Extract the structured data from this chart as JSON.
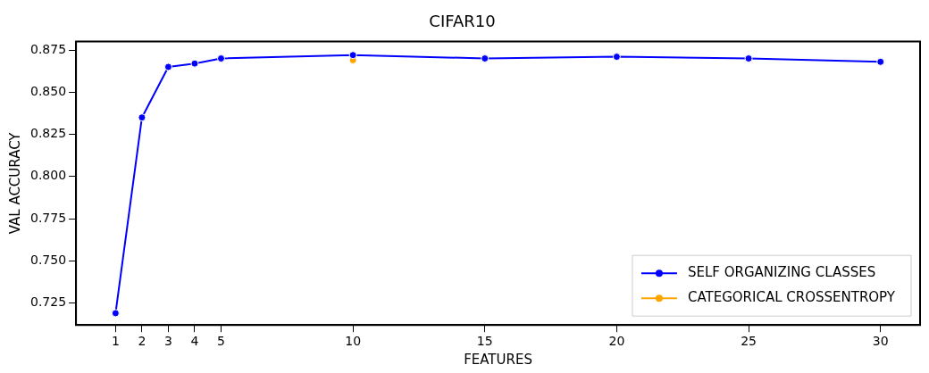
{
  "chart_data": {
    "type": "line",
    "title": "CIFAR10",
    "xlabel": "FEATURES",
    "ylabel": "VAL ACCURACY",
    "x": [
      1,
      2,
      3,
      4,
      5,
      10,
      15,
      20,
      25,
      30
    ],
    "series": [
      {
        "name": "SELF ORGANIZING CLASSES",
        "color": "#0000ff",
        "values": [
          0.719,
          0.835,
          0.865,
          0.867,
          0.87,
          0.872,
          0.87,
          0.871,
          0.87,
          0.868
        ]
      },
      {
        "name": "CATEGORICAL CROSSENTROPY",
        "color": "#ffa500",
        "x": [
          10
        ],
        "values": [
          0.869
        ]
      }
    ],
    "xlim": [
      -0.5,
      31.5
    ],
    "ylim": [
      0.712,
      0.88
    ],
    "xticks": [
      1,
      2,
      3,
      4,
      5,
      10,
      15,
      20,
      25,
      30
    ],
    "yticks": [
      {
        "value": 0.725,
        "label": "0.725"
      },
      {
        "value": 0.75,
        "label": "0.750"
      },
      {
        "value": 0.775,
        "label": "0.775"
      },
      {
        "value": 0.8,
        "label": "0.800"
      },
      {
        "value": 0.825,
        "label": "0.825"
      },
      {
        "value": 0.85,
        "label": "0.850"
      },
      {
        "value": 0.875,
        "label": "0.875"
      }
    ],
    "grid": false,
    "legend": "bottom right",
    "marker": "circle",
    "line_style": "solid"
  }
}
